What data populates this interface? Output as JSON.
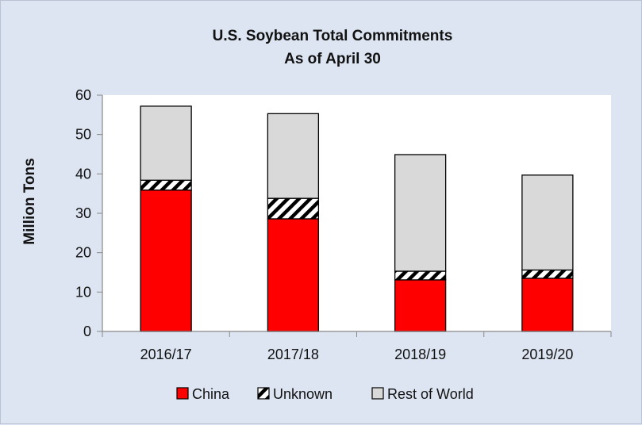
{
  "chart_data": {
    "type": "bar",
    "stacked": true,
    "title": "U.S. Soybean Total Commitments",
    "subtitle": "As of April 30",
    "xlabel": "",
    "ylabel": "Million Tons",
    "ylim": [
      0,
      60
    ],
    "yticks": [
      "0",
      "10",
      "20",
      "30",
      "40",
      "50",
      "60"
    ],
    "grid": false,
    "legend_position": "bottom",
    "categories": [
      "2016/17",
      "2017/18",
      "2018/19",
      "2019/20"
    ],
    "series": [
      {
        "name": "China",
        "color": "#ff0000",
        "pattern": "solid",
        "values": [
          35.9,
          28.6,
          13.1,
          13.5
        ]
      },
      {
        "name": "Unknown",
        "color": "#000000",
        "pattern": "diagonal-hatch",
        "values": [
          2.5,
          5.2,
          2.2,
          2.1
        ]
      },
      {
        "name": "Rest of World",
        "color": "#d9d9d9",
        "pattern": "solid",
        "values": [
          18.8,
          21.5,
          29.6,
          24.1
        ]
      }
    ]
  }
}
